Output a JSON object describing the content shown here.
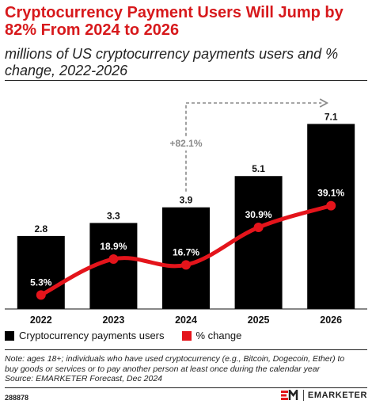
{
  "header": {
    "title": "Cryptocurrency Payment Users Will Jump by 82% From 2024 to 2026",
    "subtitle": "millions of US cryptocurrency payments users and % change, 2022-2026"
  },
  "chart_data": {
    "type": "bar",
    "categories": [
      "2022",
      "2023",
      "2024",
      "2025",
      "2026"
    ],
    "series": [
      {
        "name": "Cryptocurrency payments users",
        "values": [
          2.8,
          3.3,
          3.9,
          5.1,
          7.1
        ],
        "labels": [
          "2.8",
          "3.3",
          "3.9",
          "5.1",
          "7.1"
        ]
      },
      {
        "name": "% change",
        "type": "line",
        "values": [
          5.3,
          18.9,
          16.7,
          30.9,
          39.1
        ],
        "labels": [
          "5.3%",
          "18.9%",
          "16.7%",
          "30.9%",
          "39.1%"
        ]
      }
    ],
    "annotation": {
      "label": "+82.1%",
      "from": "2024",
      "to": "2026"
    },
    "ylim_bars": [
      0,
      7.6
    ],
    "ylim_line": [
      0,
      75
    ],
    "grid": false,
    "legend_position": "bottom",
    "colors": {
      "bars": "#000000",
      "line": "#e4141b",
      "annotation": "#8a8a8a"
    }
  },
  "legend": {
    "bars_label": "Cryptocurrency payments users",
    "line_label": "% change",
    "bars_color": "#000000",
    "line_color": "#e4141b"
  },
  "footer": {
    "note_line1": "Note: ages 18+; individuals who have used cryptocurrency (e.g., Bitcoin, Dogecoin, Ether) to",
    "note_line2": "buy goods or services or to pay another person at least once during the calendar year",
    "source": "Source: EMARKETER Forecast, Dec 2024",
    "chart_id": "288878",
    "brand": "EMARKETER"
  }
}
